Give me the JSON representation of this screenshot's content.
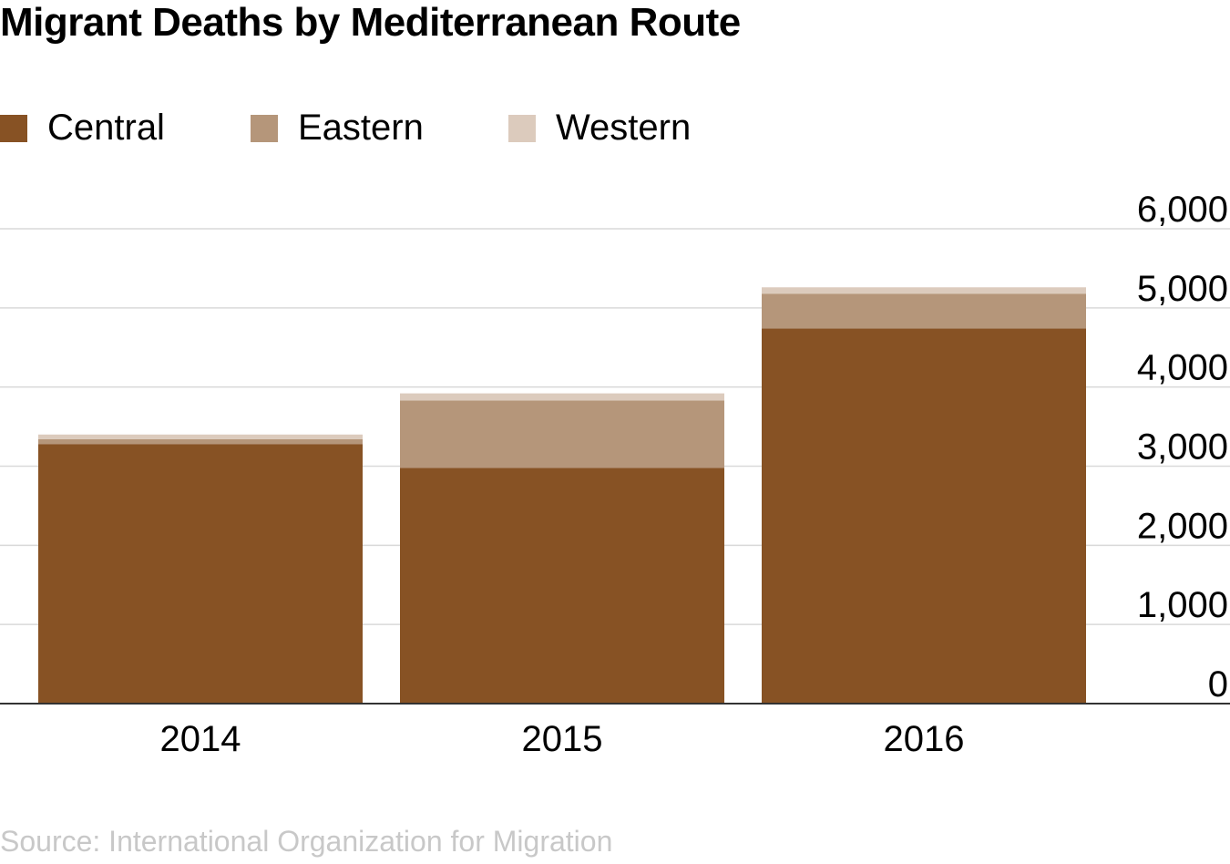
{
  "chart_data": {
    "type": "bar",
    "stacked": true,
    "title": "Migrant Deaths by Mediterranean Route",
    "xlabel": "",
    "ylabel": "",
    "categories": [
      "2014",
      "2015",
      "2016"
    ],
    "series": [
      {
        "name": "Central",
        "values": [
          3280,
          2980,
          4740
        ],
        "color": "#875224"
      },
      {
        "name": "Eastern",
        "values": [
          60,
          850,
          440
        ],
        "color": "#b5967a"
      },
      {
        "name": "Western",
        "values": [
          60,
          90,
          80
        ],
        "color": "#dccbbd"
      }
    ],
    "ylim": [
      0,
      6000
    ],
    "yticks": [
      0,
      1000,
      2000,
      3000,
      4000,
      5000,
      6000
    ],
    "ytick_labels": [
      "0",
      "1,000",
      "2,000",
      "3,000",
      "4,000",
      "5,000",
      "6,000"
    ],
    "y_axis_side": "right",
    "grid": true,
    "legend_position": "top-left",
    "source": "Source: International Organization for Migration"
  }
}
